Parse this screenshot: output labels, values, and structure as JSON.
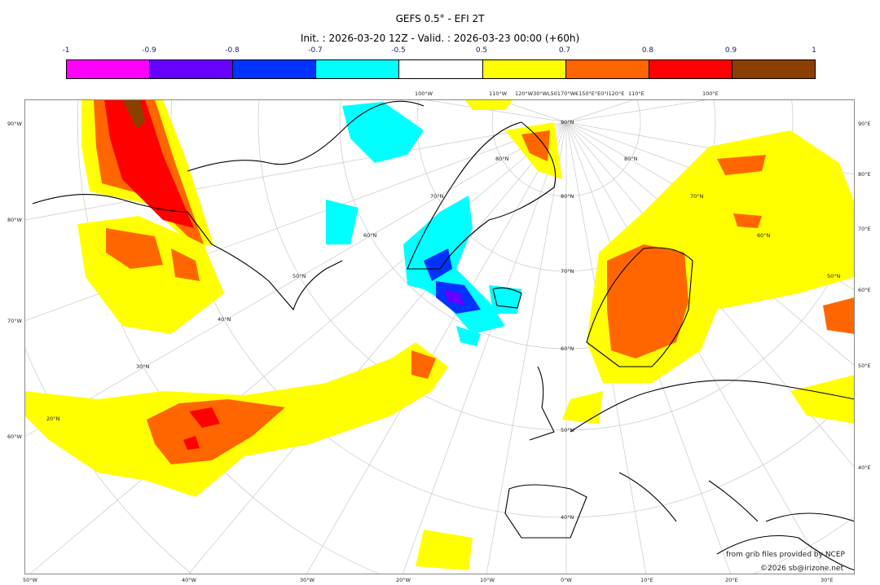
{
  "header": {
    "title": "GEFS 0.5° - EFI 2T",
    "subtitle": "Init. : 2026-03-20 12Z - Valid. : 2026-03-23 00:00 (+60h)"
  },
  "colorbar": {
    "ticks": [
      "-1",
      "-0.9",
      "-0.8",
      "-0.7",
      "-0.5",
      "0.5",
      "0.7",
      "0.8",
      "0.9",
      "1"
    ],
    "colors": [
      "#ff00ff",
      "#6600ff",
      "#0033ff",
      "#00ffff",
      "#ffffff",
      "#ffff00",
      "#ff6600",
      "#ff0000",
      "#8b4000"
    ]
  },
  "map": {
    "left_labels": [
      "90°W",
      "80°W",
      "70°W",
      "60°W"
    ],
    "right_labels": [
      "90°E",
      "80°E",
      "70°E",
      "60°E",
      "50°E",
      "40°E"
    ],
    "bottom_labels": [
      "50°W",
      "40°W",
      "30°W",
      "20°W",
      "10°W",
      "0°W",
      "10°E",
      "20°E",
      "30°E"
    ],
    "top_labels": [
      "100°W",
      "110°W",
      "120°W30°WL50170°W€150°E°E0°I120°E",
      "110°E",
      "100°E"
    ],
    "lat_labels": [
      "90°N",
      "80°N",
      "70°N",
      "60°N",
      "50°N",
      "40°N",
      "20°N",
      "30°N",
      "40°N",
      "50°N",
      "60°N",
      "70°N",
      "80°N",
      "80°N",
      "70°N",
      "60°N",
      "50°N"
    ]
  },
  "credits": {
    "source": "from grib files provided by NCEP",
    "copyright": "©2026 sb@irizone.net"
  }
}
